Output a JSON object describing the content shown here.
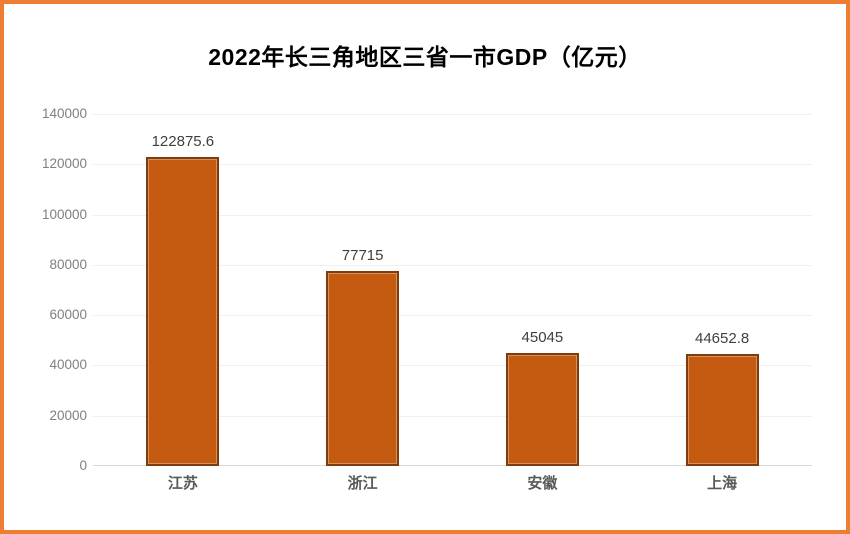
{
  "page": {
    "frame_border_color": "#ED7D31",
    "background": "#FFFFFF"
  },
  "chart_data": {
    "type": "bar",
    "title": "2022年长三角地区三省一市GDP（亿元）",
    "categories": [
      "江苏",
      "浙江",
      "安徽",
      "上海"
    ],
    "values": [
      122875.6,
      77715,
      45045,
      44652.8
    ],
    "value_labels": [
      "122875.6",
      "77715",
      "45045",
      "44652.8"
    ],
    "xlabel": "",
    "ylabel": "",
    "ylim": [
      0,
      140000
    ],
    "ytick_step": 20000,
    "ytick_labels": [
      "140000",
      "120000",
      "100000",
      "80000",
      "60000",
      "40000",
      "20000",
      "0"
    ],
    "grid": "horizontal",
    "legend": "none",
    "colors": {
      "bar_fill": "#C55A11",
      "bar_border": "#7E3B0C",
      "bar_inner_highlight": "#D4925C",
      "gridline": "#EFEFEF",
      "axis_line": "#D9D9D9",
      "y_tick_text": "#808080",
      "value_label_text": "#404040",
      "category_text": "#595959",
      "title_text": "#000000"
    }
  }
}
